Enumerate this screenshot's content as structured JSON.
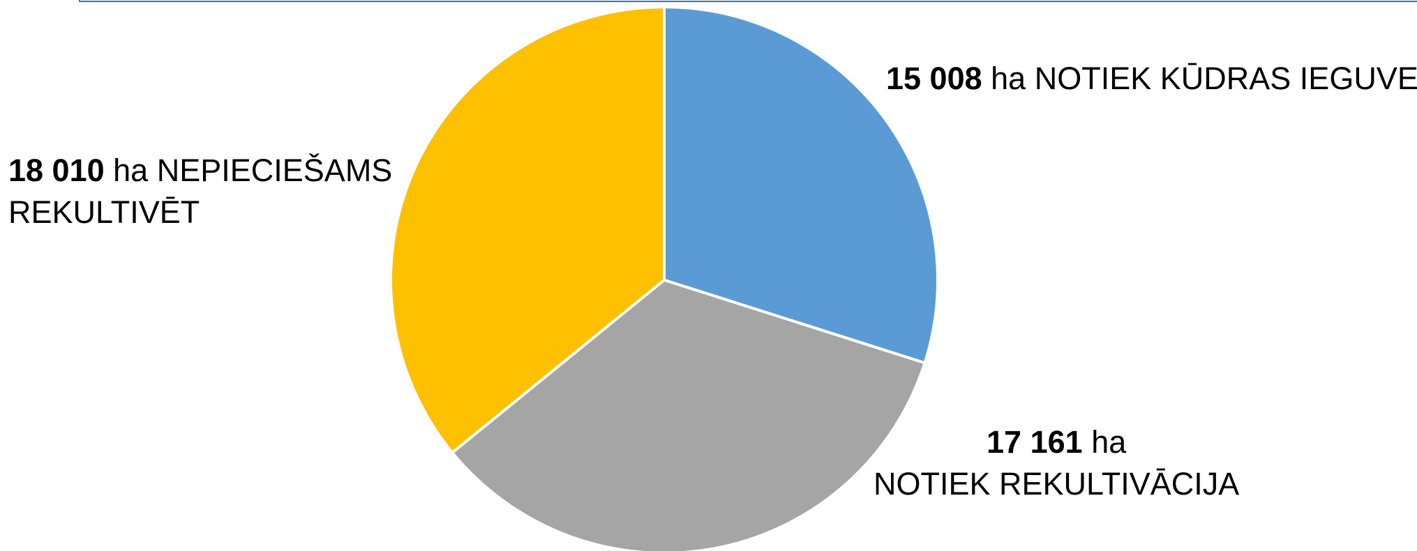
{
  "chart_data": {
    "type": "pie",
    "unit": "ha",
    "slices": [
      {
        "value": 15008,
        "value_text": "15 008",
        "unit": "ha",
        "label_lines": [
          "NOTIEK KŪDRAS IEGUVE"
        ],
        "color": "#5b9bd5"
      },
      {
        "value": 17161,
        "value_text": "17 161",
        "unit": "ha",
        "label_lines": [
          "NOTIEK REKULTIVĀCIJA"
        ],
        "color": "#a5a5a5"
      },
      {
        "value": 18010,
        "value_text": "18 010",
        "unit": "ha",
        "label_lines": [
          "NEPIECIEŠAMS",
          "REKULTIVĒT"
        ],
        "color": "#ffc000"
      }
    ],
    "start_angle": "12 o'clock",
    "direction": "clockwise",
    "legend": "none",
    "slice_border_color": "#ffffff"
  },
  "frame_color": "#2e75b6"
}
